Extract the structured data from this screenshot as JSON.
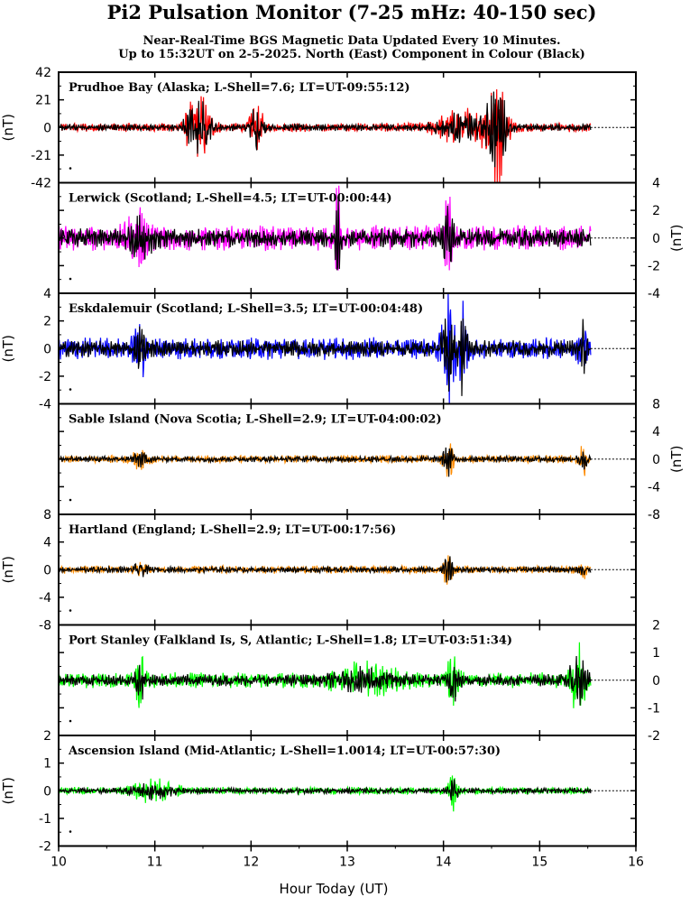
{
  "header": {
    "title": "Pi2 Pulsation Monitor (7-25 mHz: 40-150 sec)",
    "subtitle_line1": "Near-Real-Time BGS Magnetic Data Updated Every 10 Minutes.",
    "subtitle_line2": "Up to 15:32UT on 2-5-2025. North (East) Component in Colour (Black)"
  },
  "chart_data": {
    "type": "line",
    "xlabel": "Hour Today (UT)",
    "xlim": [
      10,
      16
    ],
    "xticks": [
      10,
      11,
      12,
      13,
      14,
      15,
      16
    ],
    "data_end_hour": 15.53,
    "unit_label": "(nT)",
    "panels": [
      {
        "label": "Prudhoe Bay (Alaska; L-Shell=7.6; LT=UT-09:55:12)",
        "ylim": [
          -42,
          42
        ],
        "yticks": [
          -42,
          -21,
          0,
          21,
          42
        ],
        "tick_side": "left",
        "unit_side": "left",
        "north_color": "#ff0000",
        "east_color": "#000000",
        "bursts": [
          [
            11.45,
            0.12,
            24
          ],
          [
            12.05,
            0.07,
            19
          ],
          [
            14.55,
            0.1,
            42
          ],
          [
            14.2,
            0.25,
            12
          ]
        ],
        "base_amp": 3
      },
      {
        "label": "Lerwick (Scotland; L-Shell=4.5; LT=UT-00:00:44)",
        "ylim": [
          -4,
          4
        ],
        "yticks": [
          -4,
          -2,
          0,
          2,
          4
        ],
        "tick_side": "right",
        "unit_side": "right",
        "north_color": "#ff00ff",
        "east_color": "#000000",
        "bursts": [
          [
            12.9,
            0.03,
            3
          ],
          [
            14.05,
            0.05,
            2.5
          ],
          [
            10.85,
            0.15,
            1.2
          ]
        ],
        "base_amp": 0.8
      },
      {
        "label": "Eskdalemuir (Scotland; L-Shell=3.5; LT=UT-00:04:48)",
        "ylim": [
          -4,
          4
        ],
        "yticks": [
          -4,
          -2,
          0,
          2,
          4
        ],
        "tick_side": "left",
        "unit_side": "left",
        "north_color": "#0000ff",
        "east_color": "#000000",
        "bursts": [
          [
            14.05,
            0.06,
            3.4
          ],
          [
            14.2,
            0.05,
            3.5
          ],
          [
            15.45,
            0.04,
            1.8
          ],
          [
            10.85,
            0.06,
            1.5
          ]
        ],
        "base_amp": 0.7
      },
      {
        "label": "Sable Island (Nova Scotia; L-Shell=2.9; LT=UT-04:00:02)",
        "ylim": [
          -8,
          8
        ],
        "yticks": [
          -8,
          -4,
          0,
          4,
          8
        ],
        "tick_side": "right",
        "unit_side": "right",
        "north_color": "#ff8c00",
        "east_color": "#000000",
        "bursts": [
          [
            14.05,
            0.05,
            2.7
          ],
          [
            15.45,
            0.04,
            2
          ],
          [
            10.85,
            0.08,
            1
          ]
        ],
        "base_amp": 0.5
      },
      {
        "label": "Hartland (England; L-Shell=2.9; LT=UT-00:17:56)",
        "ylim": [
          -8,
          8
        ],
        "yticks": [
          -8,
          -4,
          0,
          4,
          8
        ],
        "tick_side": "left",
        "unit_side": "left",
        "north_color": "#ff8c00",
        "east_color": "#000000",
        "bursts": [
          [
            14.05,
            0.05,
            2
          ],
          [
            10.85,
            0.06,
            1.2
          ],
          [
            15.45,
            0.03,
            1.3
          ]
        ],
        "base_amp": 0.5
      },
      {
        "label": "Port Stanley (Falkland Is, S, Atlantic; L-Shell=1.8; LT=UT-03:51:34)",
        "ylim": [
          -2,
          2
        ],
        "yticks": [
          -2,
          -1,
          0,
          1,
          2
        ],
        "tick_side": "right",
        "unit_side": "none",
        "north_color": "#00ff00",
        "east_color": "#000000",
        "bursts": [
          [
            10.85,
            0.05,
            0.8
          ],
          [
            14.1,
            0.06,
            0.8
          ],
          [
            15.4,
            0.08,
            1.1
          ],
          [
            13.2,
            0.3,
            0.4
          ]
        ],
        "base_amp": 0.25
      },
      {
        "label": "Ascension Island (Mid-Atlantic; L-Shell=1.0014; LT=UT-00:57:30)",
        "ylim": [
          -2,
          2
        ],
        "yticks": [
          -2,
          -1,
          0,
          1,
          2
        ],
        "tick_side": "left",
        "unit_side": "left",
        "north_color": "#00ff00",
        "east_color": "#000000",
        "bursts": [
          [
            11.0,
            0.2,
            0.35
          ],
          [
            14.1,
            0.05,
            0.55
          ]
        ],
        "base_amp": 0.12
      }
    ]
  }
}
